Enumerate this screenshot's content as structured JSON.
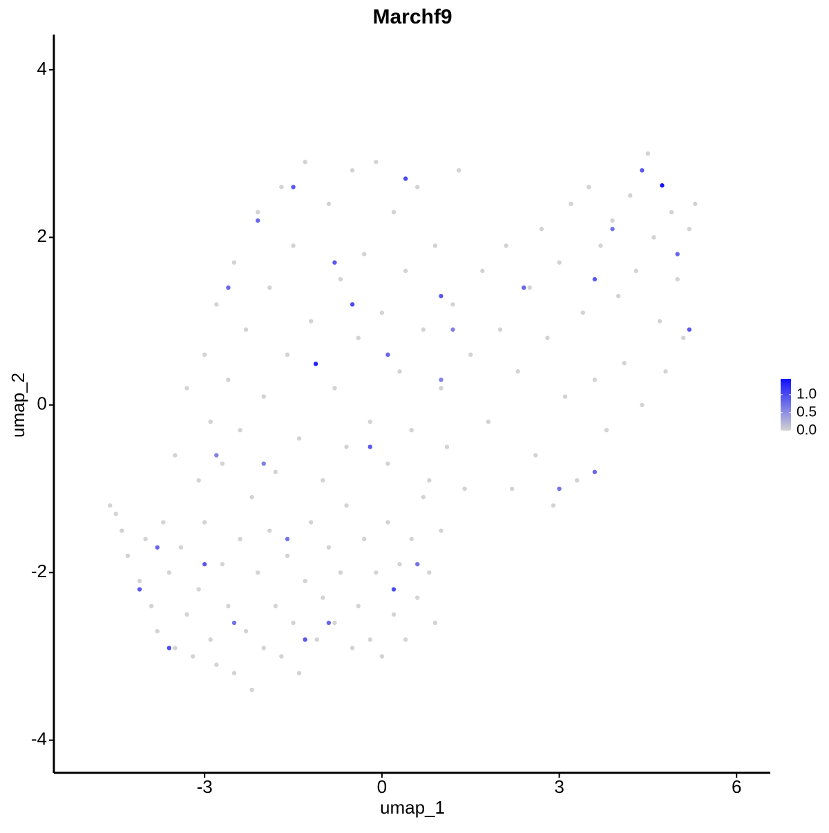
{
  "chart_data": {
    "type": "scatter",
    "title": "Marchf9",
    "x_label": "umap_1",
    "y_label": "umap_2",
    "xlim": [
      -5.55,
      6.57
    ],
    "ylim": [
      -4.39,
      4.42
    ],
    "xticks": [
      -3,
      0,
      3,
      6
    ],
    "yticks": [
      -4,
      -2,
      0,
      2,
      4
    ],
    "color_low": "#d3d3d3",
    "color_high": "#1010ff",
    "colorlim": [
      0,
      1.44
    ],
    "colorticks": [
      {
        "value": 0,
        "label": "0.0"
      },
      {
        "value": 0.5,
        "label": "0.5"
      },
      {
        "value": 1,
        "label": "1.0"
      }
    ],
    "x": [
      -4.6,
      -4.5,
      -4.4,
      -4.3,
      -4.1,
      -4.0,
      -3.9,
      -3.8,
      -3.7,
      -3.6,
      -3.5,
      -3.4,
      -3.3,
      -3.2,
      -3.1,
      -3.0,
      -2.9,
      -2.8,
      -2.7,
      -2.6,
      -2.5,
      -2.4,
      -2.3,
      -2.2,
      -2.1,
      -2.0,
      -1.9,
      -1.8,
      -1.7,
      -1.6,
      -1.5,
      -1.4,
      -1.3,
      -1.2,
      -1.1,
      -1.0,
      -0.9,
      -0.8,
      -0.7,
      -0.6,
      -0.5,
      -0.4,
      -0.3,
      -0.2,
      -0.1,
      0.0,
      0.1,
      0.2,
      0.3,
      0.4,
      0.5,
      0.6,
      0.7,
      0.8,
      0.9,
      1.0,
      -3.5,
      -3.3,
      -3.1,
      -3.0,
      -2.9,
      -2.8,
      -2.7,
      -2.6,
      -2.5,
      -2.4,
      -2.3,
      -2.2,
      -2.1,
      -2.0,
      -1.9,
      -1.8,
      -1.7,
      -1.6,
      -1.5,
      -1.4,
      -1.3,
      -1.2,
      -1.0,
      -0.9,
      -0.8,
      -0.7,
      -0.6,
      -0.5,
      -0.4,
      -0.3,
      -0.2,
      -0.1,
      0.0,
      0.1,
      0.2,
      0.3,
      0.4,
      0.5,
      0.6,
      0.7,
      0.8,
      0.9,
      1.0,
      1.1,
      1.2,
      1.3,
      1.4,
      1.5,
      1.7,
      1.8,
      2.0,
      2.1,
      2.2,
      2.3,
      2.5,
      2.6,
      2.7,
      2.8,
      2.9,
      3.0,
      3.1,
      3.2,
      3.3,
      3.4,
      3.5,
      3.6,
      3.7,
      3.8,
      3.9,
      4.0,
      4.1,
      4.2,
      4.3,
      4.4,
      4.5,
      4.6,
      4.7,
      4.8,
      4.9,
      5.0,
      5.1,
      5.2,
      5.3,
      -1.12,
      4.74,
      -4.1,
      -3.6,
      -3.8,
      -2.8,
      -2.6,
      -2.1,
      -1.5,
      -0.8,
      -0.5,
      -0.2,
      0.2,
      0.6,
      -0.9,
      -1.3,
      -2.5,
      0.4,
      1.0,
      2.4,
      3.6,
      3.9,
      4.4,
      5.0,
      5.2,
      3.0,
      3.6,
      1.2,
      -3.0,
      -2.0,
      0.1,
      -1.6,
      1.0
    ],
    "values": [
      -1.2,
      -1.3,
      -1.5,
      -1.8,
      -2.1,
      -1.6,
      -2.4,
      -2.7,
      -1.4,
      -2.0,
      -2.9,
      -1.7,
      -2.5,
      -3.0,
      -2.2,
      -1.4,
      -2.8,
      -3.1,
      -1.9,
      -2.4,
      -3.2,
      -1.6,
      -2.7,
      -3.4,
      -2.0,
      -2.9,
      -1.5,
      -2.4,
      -3.0,
      -1.8,
      -2.6,
      -3.2,
      -2.1,
      -1.4,
      -2.8,
      -2.3,
      -1.7,
      -2.6,
      -2.0,
      -1.2,
      -2.9,
      -2.4,
      -1.6,
      -2.8,
      -2.0,
      -3.0,
      -1.4,
      -2.5,
      -1.9,
      -2.8,
      -1.6,
      -2.3,
      -1.1,
      -2.0,
      -2.6,
      -1.5,
      -0.6,
      0.2,
      -0.9,
      0.6,
      -0.2,
      1.2,
      -0.7,
      0.3,
      1.7,
      -0.3,
      0.9,
      -1.1,
      2.3,
      0.1,
      1.4,
      -0.8,
      2.6,
      0.6,
      1.9,
      -0.4,
      2.9,
      1.0,
      -0.9,
      2.4,
      0.2,
      1.5,
      -0.5,
      2.8,
      0.8,
      1.8,
      -0.2,
      2.9,
      1.1,
      -0.7,
      2.3,
      0.4,
      1.6,
      -0.3,
      2.6,
      0.9,
      -0.9,
      1.9,
      0.2,
      -0.5,
      1.2,
      2.8,
      -1.0,
      0.6,
      1.6,
      -0.2,
      0.9,
      1.9,
      -1.0,
      0.4,
      1.4,
      -0.6,
      2.1,
      0.8,
      -1.2,
      1.7,
      0.1,
      2.4,
      -0.9,
      1.1,
      2.6,
      0.3,
      1.9,
      -0.3,
      2.2,
      1.3,
      0.5,
      2.5,
      1.6,
      0.0,
      3.0,
      2.0,
      1.0,
      0.4,
      2.3,
      1.5,
      0.8,
      2.1,
      2.4,
      0.49,
      2.62,
      -2.2,
      -2.9,
      -1.7,
      -0.6,
      1.4,
      2.2,
      2.6,
      1.7,
      1.2,
      -0.5,
      -2.2,
      -1.9,
      -2.6,
      -2.8,
      -2.6,
      2.7,
      1.3,
      1.4,
      1.5,
      2.1,
      2.8,
      1.8,
      0.9,
      -1.0,
      -0.8,
      0.9,
      -1.9,
      -0.7,
      0.6,
      -1.6,
      0.3
    ],
    "expression": [
      0,
      0,
      0,
      0,
      0,
      0,
      0,
      0,
      0,
      0,
      0,
      0,
      0,
      0,
      0,
      0,
      0,
      0,
      0,
      0,
      0,
      0,
      0,
      0,
      0,
      0,
      0,
      0,
      0,
      0,
      0,
      0,
      0,
      0,
      0,
      0,
      0,
      0,
      0,
      0,
      0,
      0,
      0,
      0,
      0,
      0,
      0,
      0,
      0,
      0,
      0,
      0,
      0,
      0,
      0,
      0,
      0,
      0,
      0,
      0,
      0,
      0,
      0,
      0,
      0,
      0,
      0,
      0,
      0,
      0,
      0,
      0,
      0,
      0,
      0,
      0,
      0,
      0,
      0,
      0,
      0,
      0,
      0,
      0,
      0,
      0,
      0,
      0,
      0,
      0,
      0,
      0,
      0,
      0,
      0,
      0,
      0,
      0,
      0,
      0,
      0,
      0,
      0,
      0,
      0,
      0,
      0,
      0,
      0,
      0,
      0,
      0,
      0,
      0,
      0,
      0,
      0,
      0,
      0,
      0,
      0,
      0,
      0,
      0,
      0,
      0,
      0,
      0,
      0,
      0,
      0,
      0,
      0,
      0,
      0,
      0,
      0,
      0,
      0,
      1.3,
      1.4,
      0.9,
      1.0,
      0.8,
      0.6,
      0.8,
      0.8,
      0.9,
      0.9,
      1.0,
      0.9,
      1.0,
      0.7,
      0.8,
      0.9,
      0.7,
      1.0,
      0.9,
      0.8,
      0.9,
      0.7,
      0.9,
      0.8,
      0.9,
      0.7,
      0.8,
      0.6,
      0.9,
      0.6,
      0.8,
      0.7,
      0.6
    ]
  }
}
